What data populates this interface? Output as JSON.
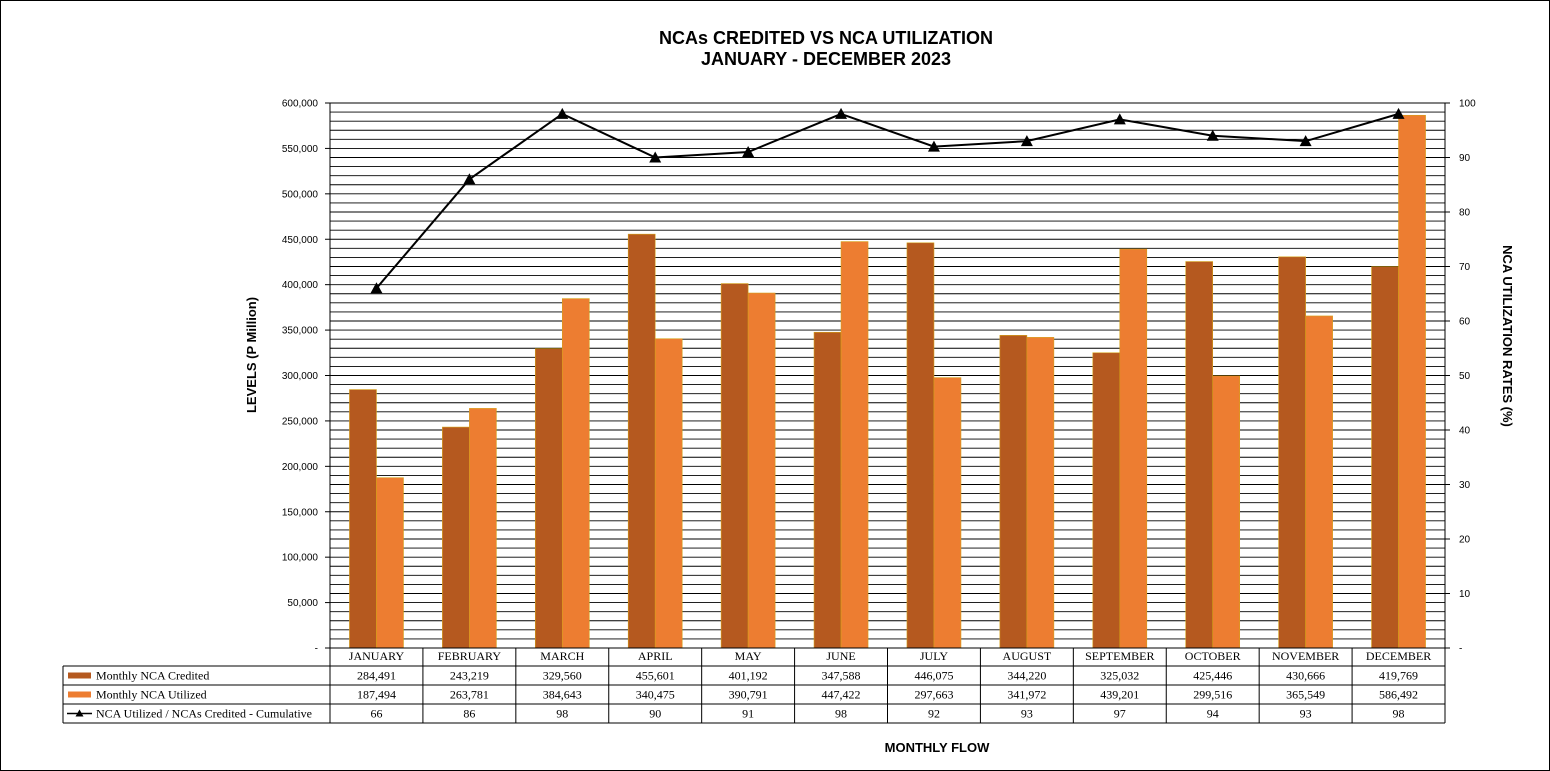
{
  "chart_data": {
    "type": "bar",
    "title_line1": "NCAs CREDITED VS NCA UTILIZATION",
    "title_line2": "JANUARY  - DECEMBER 2023",
    "ylabel_left": "LEVELS (P Million)",
    "ylabel_right": "NCA UTILIZATION RATES (%)",
    "xlabel": "MONTHLY FLOW",
    "ylim_left": [
      0,
      600000
    ],
    "ylim_right": [
      0,
      100
    ],
    "left_ticks": [
      "-",
      "50,000",
      "100,000",
      "150,000",
      "200,000",
      "250,000",
      "300,000",
      "350,000",
      "400,000",
      "450,000",
      "500,000",
      "550,000",
      "600,000"
    ],
    "right_ticks": [
      "-",
      "10",
      "20",
      "30",
      "40",
      "50",
      "60",
      "70",
      "80",
      "90",
      "100"
    ],
    "grid": true,
    "legend_placement": "data-table-below",
    "categories": [
      "JANUARY",
      "FEBRUARY",
      "MARCH",
      "APRIL",
      "MAY",
      "JUNE",
      "JULY",
      "AUGUST",
      "SEPTEMBER",
      "OCTOBER",
      "NOVEMBER",
      "DECEMBER"
    ],
    "series": [
      {
        "name": "Monthly NCA Credited",
        "kind": "bar",
        "color": "#b5591f",
        "values": [
          284491,
          243219,
          329560,
          455601,
          401192,
          347588,
          446075,
          344220,
          325032,
          425446,
          430666,
          419769
        ],
        "labels": [
          "284,491",
          "243,219",
          "329,560",
          "455,601",
          "401,192",
          "347,588",
          "446,075",
          "344,220",
          "325,032",
          "425,446",
          "430,666",
          "419,769"
        ]
      },
      {
        "name": "Monthly NCA Utilized",
        "kind": "bar",
        "color": "#ed7d31",
        "values": [
          187494,
          263781,
          384643,
          340475,
          390791,
          447422,
          297663,
          341972,
          439201,
          299516,
          365549,
          586492
        ],
        "labels": [
          "187,494",
          "263,781",
          "384,643",
          "340,475",
          "390,791",
          "447,422",
          "297,663",
          "341,972",
          "439,201",
          "299,516",
          "365,549",
          "586,492"
        ]
      },
      {
        "name": "NCA Utilized / NCAs Credited - Cumulative",
        "kind": "line",
        "axis": "right",
        "color": "#000000",
        "values": [
          66,
          86,
          98,
          90,
          91,
          98,
          92,
          93,
          97,
          94,
          93,
          98
        ],
        "labels": [
          "66",
          "86",
          "98",
          "90",
          "91",
          "98",
          "92",
          "93",
          "97",
          "94",
          "93",
          "98"
        ]
      }
    ]
  }
}
